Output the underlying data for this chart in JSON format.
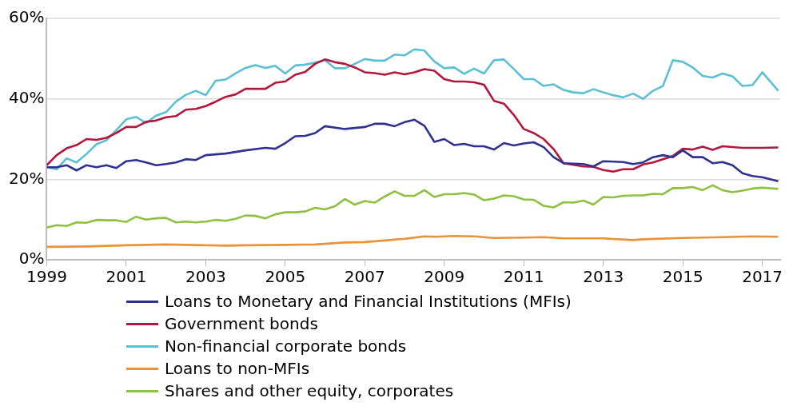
{
  "chart_data": {
    "type": "line",
    "xlim": [
      1999,
      2017.45
    ],
    "xticks": [
      1999,
      2001,
      2003,
      2005,
      2007,
      2009,
      2011,
      2013,
      2015,
      2017
    ],
    "ylim": [
      0,
      60
    ],
    "yticks": [
      {
        "value": 0,
        "label": "0%"
      },
      {
        "value": 20,
        "label": "20%"
      },
      {
        "value": 40,
        "label": "40%"
      },
      {
        "value": 60,
        "label": "60%"
      }
    ],
    "grid": "y",
    "legend": "bottom",
    "marker": "none",
    "line_style": "solid",
    "series": [
      {
        "name": "Loans to Monetary and Financial Institutions (MFIs)",
        "color": "#2e3192",
        "x": [
          1999,
          1999.25,
          1999.5,
          1999.75,
          2000,
          2000.25,
          2000.5,
          2000.75,
          2001,
          2001.25,
          2001.5,
          2001.75,
          2002,
          2002.25,
          2002.5,
          2002.75,
          2003,
          2003.5,
          2004,
          2004.5,
          2004.75,
          2005,
          2005.25,
          2005.5,
          2005.75,
          2006,
          2006.5,
          2007,
          2007.25,
          2007.5,
          2007.75,
          2008,
          2008.25,
          2008.5,
          2008.75,
          2009,
          2009.25,
          2009.5,
          2009.75,
          2010,
          2010.25,
          2010.5,
          2010.75,
          2011,
          2011.25,
          2011.5,
          2011.75,
          2012,
          2012.5,
          2012.75,
          2013,
          2013.5,
          2013.75,
          2014,
          2014.25,
          2014.5,
          2014.75,
          2015,
          2015.25,
          2015.5,
          2015.75,
          2016,
          2016.25,
          2016.5,
          2016.75,
          2017,
          2017.4
        ],
        "values": [
          23,
          23,
          23.5,
          22.2,
          23.5,
          23,
          23.5,
          22.8,
          24.5,
          24.8,
          24.2,
          23.5,
          23.8,
          24.2,
          25,
          24.8,
          26,
          26.4,
          27.2,
          27.8,
          27.6,
          29,
          30.7,
          30.8,
          31.5,
          33.2,
          32.5,
          33,
          33.8,
          33.8,
          33.2,
          34.2,
          34.8,
          33.3,
          29.3,
          30,
          28.5,
          28.8,
          28.2,
          28.2,
          27.4,
          29,
          28.4,
          28.9,
          29.2,
          28,
          25.5,
          24,
          23.8,
          23.2,
          24.5,
          24.3,
          23.8,
          24.2,
          25.5,
          26,
          25.5,
          27.2,
          25.5,
          25.5,
          24,
          24.3,
          23.5,
          21.5,
          20.8,
          20.5,
          19.5
        ]
      },
      {
        "name": "Government bonds",
        "color": "#b5163b",
        "x": [
          1999,
          1999.25,
          1999.5,
          1999.75,
          2000,
          2000.25,
          2000.5,
          2000.75,
          2001,
          2001.25,
          2001.5,
          2001.75,
          2002,
          2002.25,
          2002.5,
          2002.75,
          2003,
          2003.25,
          2003.5,
          2003.75,
          2004,
          2004.5,
          2004.75,
          2005,
          2005.25,
          2005.5,
          2005.75,
          2006,
          2006.25,
          2006.5,
          2006.75,
          2007,
          2007.25,
          2007.5,
          2007.75,
          2008,
          2008.25,
          2008.5,
          2008.75,
          2009,
          2009.25,
          2009.5,
          2009.75,
          2010,
          2010.25,
          2010.5,
          2010.75,
          2011,
          2011.25,
          2011.5,
          2011.75,
          2012,
          2012.25,
          2012.5,
          2012.75,
          2013,
          2013.25,
          2013.5,
          2013.75,
          2014,
          2014.25,
          2014.5,
          2014.75,
          2015,
          2015.25,
          2015.5,
          2015.75,
          2016,
          2016.5,
          2017,
          2017.4
        ],
        "values": [
          23.5,
          26,
          27.7,
          28.5,
          30,
          29.8,
          30.3,
          31.5,
          33,
          33,
          34.3,
          34.6,
          35.4,
          35.7,
          37.3,
          37.5,
          38.2,
          39.3,
          40.5,
          41.1,
          42.5,
          42.5,
          44,
          44.3,
          46,
          46.7,
          48.7,
          49.8,
          49.1,
          48.7,
          47.8,
          46.6,
          46.4,
          46,
          46.6,
          46.1,
          46.6,
          47.4,
          47,
          44.9,
          44.3,
          44.3,
          44.1,
          43.5,
          39.5,
          38.8,
          36,
          32.5,
          31.5,
          30,
          27.5,
          24,
          23.6,
          23.2,
          23.1,
          22.3,
          21.9,
          22.5,
          22.5,
          23.7,
          24.2,
          25,
          25.8,
          27.6,
          27.4,
          28.1,
          27.3,
          28.2,
          27.8,
          27.8,
          27.9
        ]
      },
      {
        "name": "Non-financial corporate bonds",
        "color": "#5bc0d4",
        "x": [
          1999,
          1999.25,
          1999.5,
          1999.75,
          2000,
          2000.25,
          2000.5,
          2000.75,
          2001,
          2001.25,
          2001.5,
          2001.75,
          2002,
          2002.25,
          2002.5,
          2002.75,
          2003,
          2003.25,
          2003.5,
          2003.75,
          2004,
          2004.25,
          2004.5,
          2004.75,
          2005,
          2005.25,
          2005.5,
          2005.75,
          2006,
          2006.25,
          2006.5,
          2006.75,
          2007,
          2007.25,
          2007.5,
          2007.75,
          2008,
          2008.25,
          2008.5,
          2008.75,
          2009,
          2009.25,
          2009.5,
          2009.75,
          2010,
          2010.25,
          2010.5,
          2010.75,
          2011,
          2011.25,
          2011.5,
          2011.75,
          2012,
          2012.25,
          2012.5,
          2012.75,
          2013,
          2013.25,
          2013.5,
          2013.75,
          2014,
          2014.25,
          2014.5,
          2014.75,
          2015,
          2015.25,
          2015.5,
          2015.75,
          2016,
          2016.25,
          2016.5,
          2016.75,
          2017,
          2017.4
        ],
        "values": [
          23,
          22.5,
          25.2,
          24.2,
          26.3,
          28.7,
          29.7,
          32.2,
          34.9,
          35.5,
          34,
          35.8,
          36.7,
          39.3,
          41,
          42,
          40.9,
          44.5,
          44.8,
          46.3,
          47.7,
          48.4,
          47.7,
          48.2,
          46.3,
          48.3,
          48.5,
          49,
          49.6,
          47.6,
          47.6,
          48.7,
          49.9,
          49.5,
          49.5,
          51,
          50.8,
          52.3,
          52,
          49.3,
          47.6,
          47.8,
          46.2,
          47.5,
          46.3,
          49.6,
          49.8,
          47.4,
          44.9,
          44.9,
          43.2,
          43.6,
          42.2,
          41.6,
          41.4,
          42.4,
          41.6,
          40.9,
          40.4,
          41.3,
          40,
          42,
          43.2,
          49.6,
          49.2,
          47.8,
          45.7,
          45.3,
          46.3,
          45.6,
          43.2,
          43.4,
          46.6,
          42
        ]
      },
      {
        "name": "Loans to non-MFIs",
        "color": "#e8923a",
        "x": [
          1999,
          2000,
          2001,
          2002,
          2002.5,
          2003.5,
          2004,
          2005,
          2005.75,
          2006.5,
          2007,
          2007.5,
          2008,
          2008.5,
          2008.75,
          2009.25,
          2009.75,
          2010.25,
          2011,
          2011.5,
          2012,
          2013,
          2013.75,
          2014,
          2015,
          2016,
          2016.75,
          2017.4
        ],
        "values": [
          3.2,
          3.3,
          3.6,
          3.8,
          3.7,
          3.5,
          3.6,
          3.7,
          3.8,
          4.3,
          4.4,
          4.8,
          5.2,
          5.8,
          5.7,
          5.9,
          5.8,
          5.4,
          5.5,
          5.6,
          5.3,
          5.3,
          4.9,
          5.1,
          5.4,
          5.6,
          5.8,
          5.7
        ]
      },
      {
        "name": "Shares and other equity, corporates",
        "color": "#8dc13f",
        "x": [
          1999,
          1999.25,
          1999.5,
          1999.75,
          2000,
          2000.25,
          2000.5,
          2000.75,
          2001,
          2001.25,
          2001.5,
          2001.75,
          2002,
          2002.25,
          2002.5,
          2002.75,
          2003,
          2003.25,
          2003.5,
          2003.75,
          2004,
          2004.25,
          2004.5,
          2004.75,
          2005,
          2005.25,
          2005.5,
          2005.75,
          2006,
          2006.25,
          2006.5,
          2006.75,
          2007,
          2007.25,
          2007.5,
          2007.75,
          2008,
          2008.25,
          2008.5,
          2008.75,
          2009,
          2009.25,
          2009.5,
          2009.75,
          2010,
          2010.25,
          2010.5,
          2010.75,
          2011,
          2011.25,
          2011.5,
          2011.75,
          2012,
          2012.25,
          2012.5,
          2012.75,
          2013,
          2013.25,
          2013.5,
          2013.75,
          2014,
          2014.25,
          2014.5,
          2014.75,
          2015,
          2015.25,
          2015.5,
          2015.75,
          2016,
          2016.25,
          2016.5,
          2016.75,
          2017,
          2017.4
        ],
        "values": [
          8,
          8.6,
          8.4,
          9.3,
          9.2,
          9.9,
          9.8,
          9.8,
          9.4,
          10.7,
          10,
          10.3,
          10.4,
          9.3,
          9.5,
          9.3,
          9.5,
          9.9,
          9.7,
          10.2,
          11,
          10.9,
          10.3,
          11.3,
          11.8,
          11.8,
          12,
          12.9,
          12.5,
          13.3,
          15.1,
          13.7,
          14.6,
          14.2,
          15.7,
          17,
          15.9,
          15.9,
          17.3,
          15.6,
          16.3,
          16.3,
          16.6,
          16.2,
          14.8,
          15.2,
          16,
          15.8,
          15,
          14.9,
          13.4,
          13,
          14.3,
          14.2,
          14.7,
          13.7,
          15.6,
          15.5,
          15.9,
          16,
          16,
          16.4,
          16.3,
          17.8,
          17.8,
          18.1,
          17.3,
          18.5,
          17.3,
          16.8,
          17.2,
          17.7,
          17.9,
          17.6
        ]
      }
    ]
  }
}
